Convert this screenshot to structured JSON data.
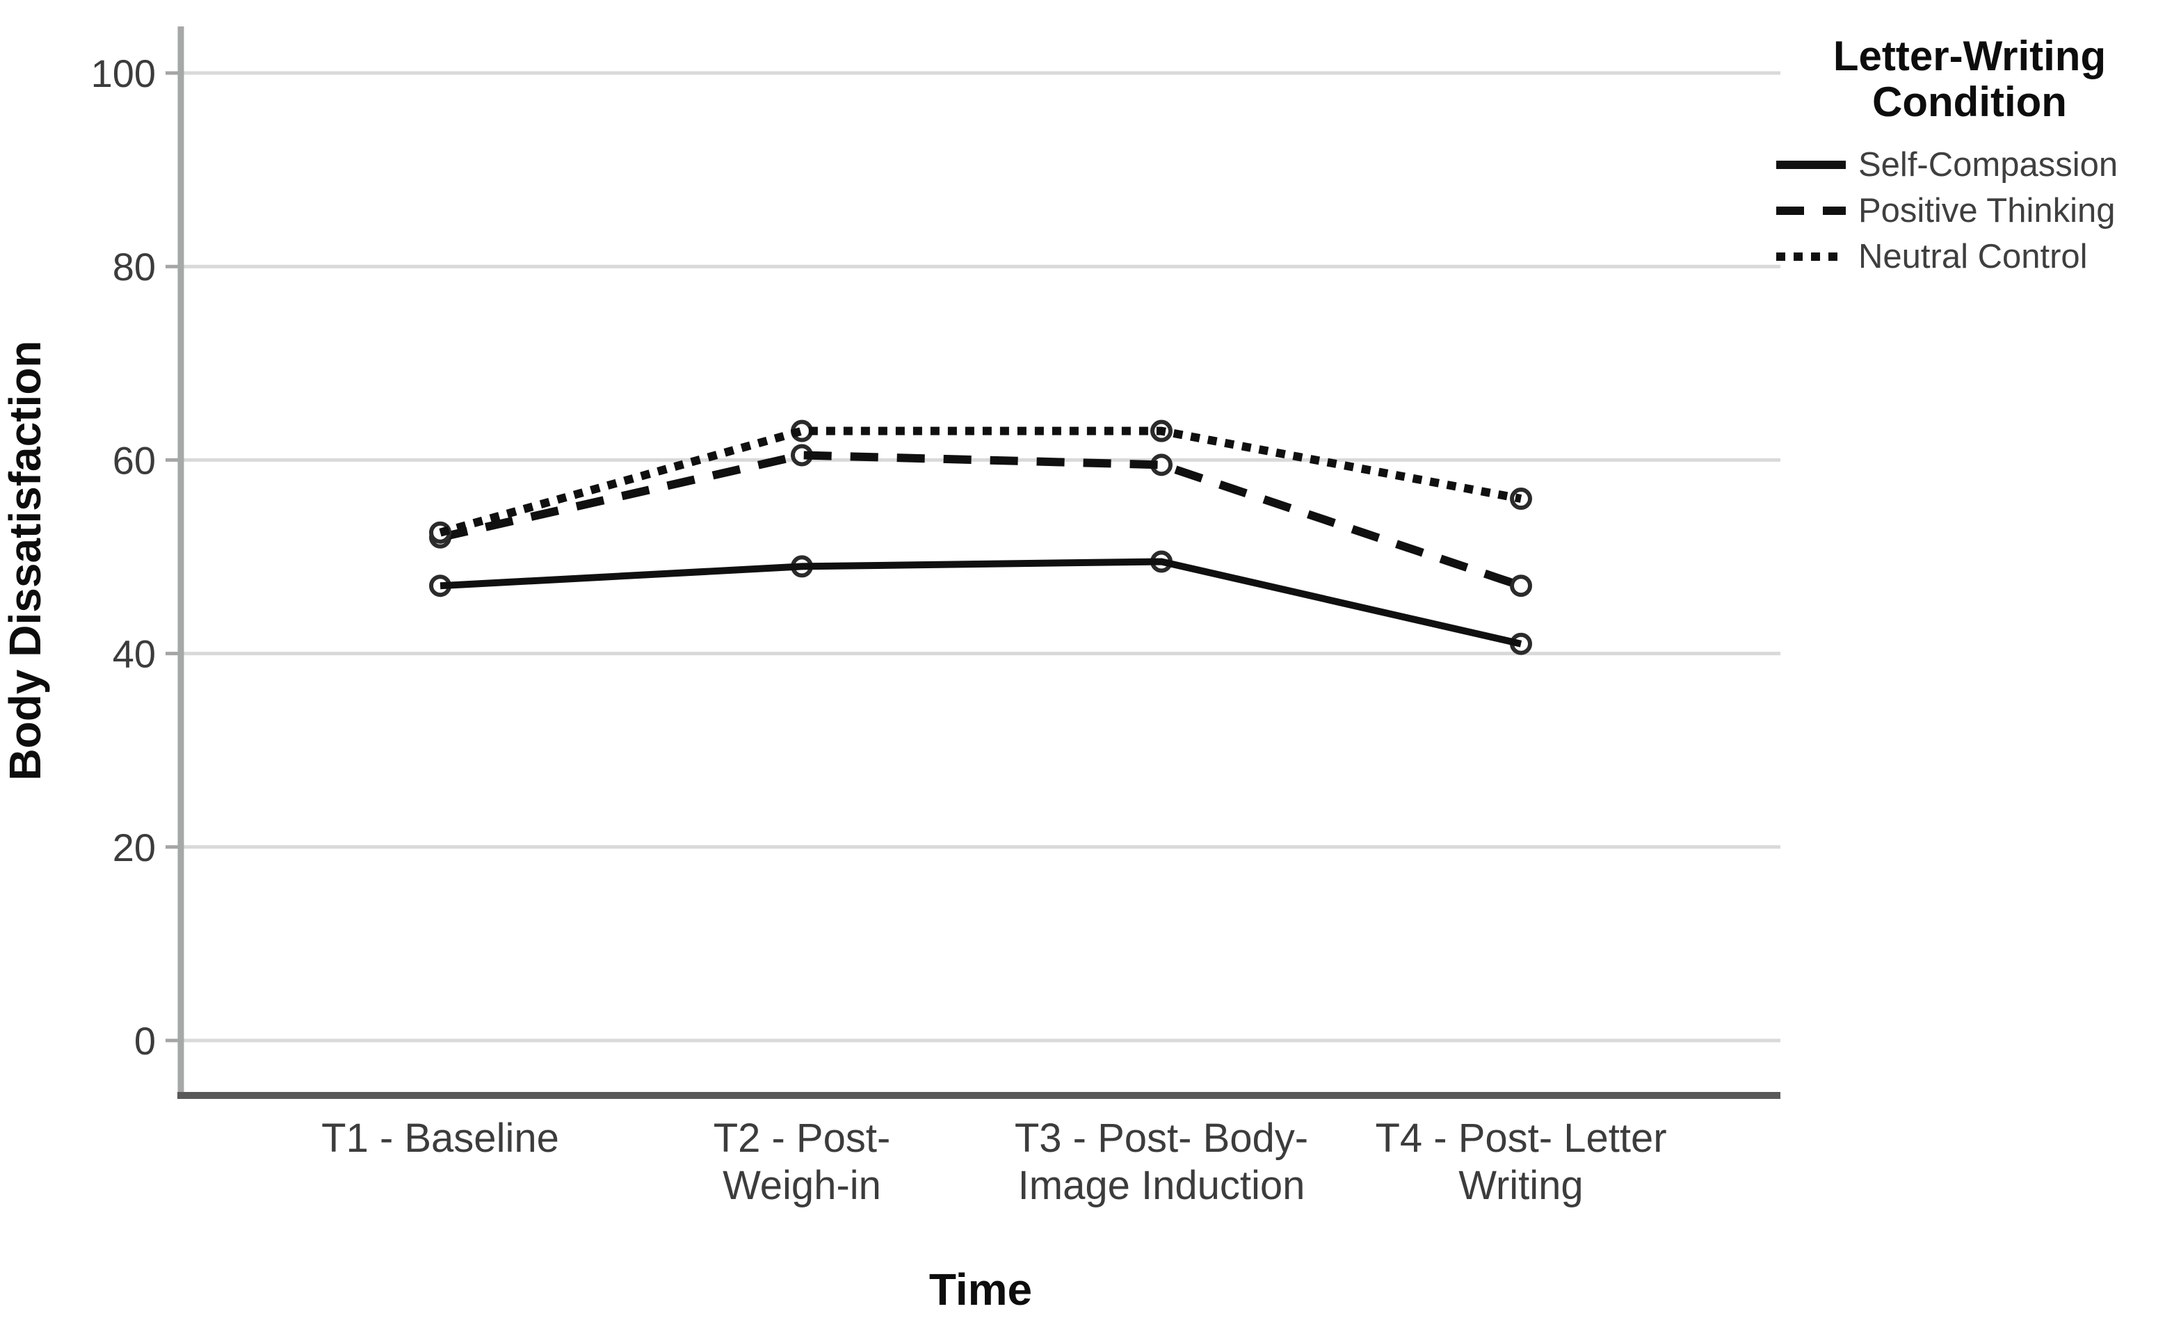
{
  "page": {
    "background": "#ffffff"
  },
  "chart_data": {
    "type": "line",
    "title": "",
    "xlabel": "Time",
    "ylabel": "Body Dissatisfaction",
    "ylim": [
      0,
      100
    ],
    "yticks": [
      100,
      80,
      60,
      40,
      20,
      0
    ],
    "grid": "horizontal",
    "categories": [
      "T1 - Baseline",
      "T2 - Post- Weigh-in",
      "T3 - Post- Body- Image Induction",
      "T4 - Post- Letter Writing"
    ],
    "category_label_lines": [
      [
        "T1 - Baseline"
      ],
      [
        "T2 - Post-",
        "Weigh-in"
      ],
      [
        "T3 - Post- Body-",
        "Image Induction"
      ],
      [
        "T4 - Post- Letter",
        "Writing"
      ]
    ],
    "series": [
      {
        "name": "Self-Compassion",
        "style": "solid",
        "values": [
          47,
          49,
          49.5,
          41
        ]
      },
      {
        "name": "Positive Thinking",
        "style": "dashed",
        "values": [
          52,
          60.5,
          59.5,
          47
        ]
      },
      {
        "name": "Neutral Control",
        "style": "dotted",
        "values": [
          52.5,
          63,
          63,
          56
        ]
      }
    ],
    "legend": {
      "title": "Letter-Writing Condition",
      "position": "top-right"
    },
    "colors": {
      "line": "#101010",
      "grid": "#d9d9d9",
      "y_axis": "#a5a9a5",
      "x_axis": "#595959",
      "tick_label": "#3c3c3c",
      "axis_title": "#0d0d0d",
      "legend_text": "#3f3f3f",
      "marker_fill": "#ffffff",
      "marker_stroke": "#2b2b2b"
    }
  }
}
